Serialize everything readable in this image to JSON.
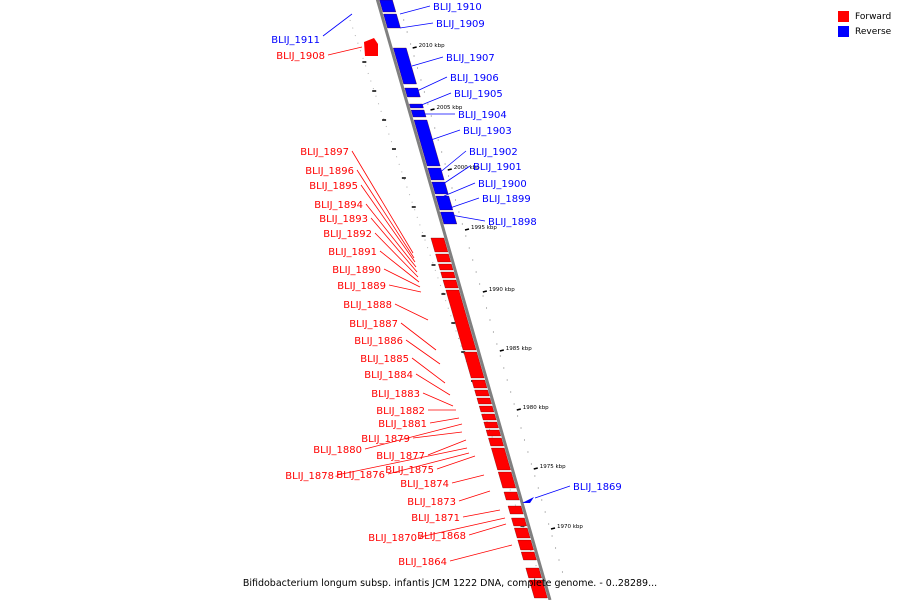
{
  "caption": "Bifidobacterium longum subsp. infantis JCM 1222 DNA, complete genome. - 0..28289...",
  "legend": {
    "items": [
      {
        "label": "Forward",
        "color": "#ff0000"
      },
      {
        "label": "Reverse",
        "color": "#0000ff"
      }
    ]
  },
  "colors": {
    "forward": "#ff0000",
    "reverse": "#0000ff",
    "backbone": "#808080"
  },
  "scale": {
    "unit": "kbp",
    "labels": [
      "2010 kbp",
      "2005 kbp",
      "2000 kbp",
      "1995 kbp",
      "1990 kbp",
      "1985 kbp",
      "1980 kbp",
      "1975 kbp",
      "1970 kbp"
    ]
  },
  "genes": {
    "reverse": [
      "BLIJ_1910",
      "BLIJ_1909",
      "BLIJ_1907",
      "BLIJ_1906",
      "BLIJ_1905",
      "BLIJ_1904",
      "BLIJ_1903",
      "BLIJ_1902",
      "BLIJ_1901",
      "BLIJ_1900",
      "BLIJ_1899",
      "BLIJ_1898",
      "BLIJ_1869",
      "BLIJ_1911"
    ],
    "forward": [
      "BLIJ_1908",
      "BLIJ_1897",
      "BLIJ_1896",
      "BLIJ_1895",
      "BLIJ_1894",
      "BLIJ_1893",
      "BLIJ_1892",
      "BLIJ_1891",
      "BLIJ_1890",
      "BLIJ_1889",
      "BLIJ_1888",
      "BLIJ_1887",
      "BLIJ_1886",
      "BLIJ_1885",
      "BLIJ_1884",
      "BLIJ_1883",
      "BLIJ_1882",
      "BLIJ_1881",
      "BLIJ_1880",
      "BLIJ_1879",
      "BLIJ_1877",
      "BLIJ_1878",
      "BLIJ_1876",
      "BLIJ_1875",
      "BLIJ_1874",
      "BLIJ_1873",
      "BLIJ_1871",
      "BLIJ_1870",
      "BLIJ_1868",
      "BLIJ_1864"
    ]
  }
}
